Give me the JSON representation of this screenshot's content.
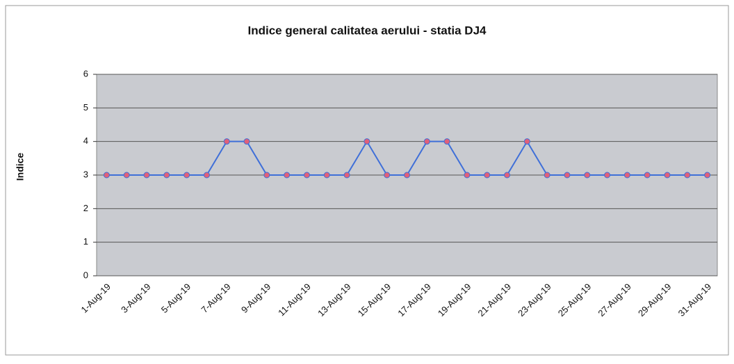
{
  "chart_data": {
    "type": "line",
    "title": "Indice general calitatea aerului -  statia DJ4",
    "y_label": "Indice",
    "categories": [
      "1-Aug-19",
      null,
      "3-Aug-19",
      null,
      "5-Aug-19",
      null,
      "7-Aug-19",
      null,
      "9-Aug-19",
      null,
      "11-Aug-19",
      null,
      "13-Aug-19",
      null,
      "15-Aug-19",
      null,
      "17-Aug-19",
      null,
      "19-Aug-19",
      null,
      "21-Aug-19",
      null,
      "23-Aug-19",
      null,
      "25-Aug-19",
      null,
      "27-Aug-19",
      null,
      "29-Aug-19",
      null,
      "31-Aug-19"
    ],
    "series": [
      {
        "name": "Indice",
        "color": "#3f6fd8",
        "marker_color": "#e0607a",
        "values": [
          3,
          3,
          3,
          3,
          3,
          3,
          4,
          4,
          3,
          3,
          3,
          3,
          3,
          4,
          3,
          3,
          4,
          4,
          3,
          3,
          3,
          4,
          3,
          3,
          3,
          3,
          3,
          3,
          3,
          3,
          3
        ]
      }
    ],
    "ylim": [
      0,
      6
    ],
    "yticks": [
      0,
      1,
      2,
      3,
      4,
      5,
      6
    ],
    "grid": true
  }
}
